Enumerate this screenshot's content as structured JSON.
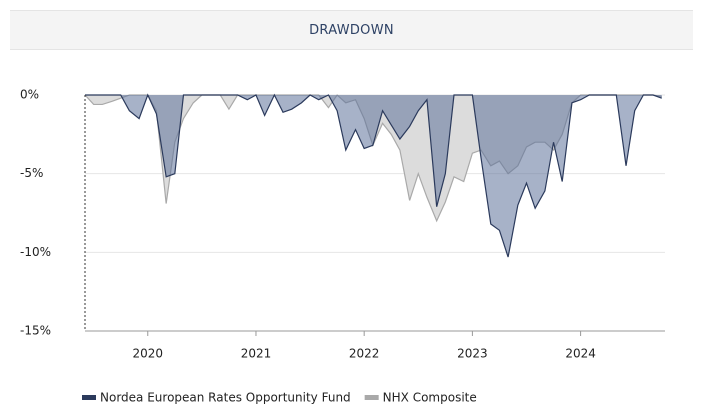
{
  "title": "DRAWDOWN",
  "chart_data": {
    "type": "area",
    "x": [
      2019.42,
      2019.5,
      2019.58,
      2019.67,
      2019.75,
      2019.83,
      2019.92,
      2020.0,
      2020.08,
      2020.17,
      2020.25,
      2020.33,
      2020.42,
      2020.5,
      2020.58,
      2020.67,
      2020.75,
      2020.83,
      2020.92,
      2021.0,
      2021.08,
      2021.17,
      2021.25,
      2021.33,
      2021.42,
      2021.5,
      2021.58,
      2021.67,
      2021.75,
      2021.83,
      2021.92,
      2022.0,
      2022.08,
      2022.17,
      2022.25,
      2022.33,
      2022.42,
      2022.5,
      2022.58,
      2022.67,
      2022.75,
      2022.83,
      2022.92,
      2023.0,
      2023.08,
      2023.17,
      2023.25,
      2023.33,
      2023.42,
      2023.5,
      2023.58,
      2023.67,
      2023.75,
      2023.83,
      2023.92,
      2024.0,
      2024.08,
      2024.17,
      2024.25,
      2024.33,
      2024.42,
      2024.5,
      2024.58,
      2024.67,
      2024.75
    ],
    "series": [
      {
        "name": "NHX Composite",
        "color": "#a9a9a9",
        "fill": "#dcdcdc",
        "values": [
          0,
          -0.6,
          -0.6,
          -0.4,
          -0.2,
          0,
          0,
          0,
          -1.0,
          -6.9,
          -3.0,
          -1.5,
          -0.5,
          0,
          0,
          0,
          -0.9,
          0,
          0,
          0,
          0,
          0,
          0,
          0,
          0,
          0,
          0,
          -0.8,
          0,
          -0.5,
          -0.3,
          -1.5,
          -3.2,
          -1.8,
          -2.5,
          -3.5,
          -6.7,
          -5.0,
          -6.5,
          -8.0,
          -6.8,
          -5.2,
          -5.5,
          -3.7,
          -3.5,
          -4.5,
          -4.2,
          -5.0,
          -4.5,
          -3.3,
          -3.0,
          -3.0,
          -3.5,
          -2.5,
          -0.5,
          0,
          0,
          0,
          0,
          0,
          0,
          0,
          0,
          0,
          -0.1
        ]
      },
      {
        "name": "Nordea European Rates Opportunity Fund",
        "color": "#2b3a5c",
        "fill": "#5f739a",
        "values": [
          0,
          0,
          0,
          0,
          0,
          -1.0,
          -1.5,
          0,
          -1.2,
          -5.2,
          -5.0,
          0,
          0,
          0,
          0,
          0,
          0,
          0,
          -0.3,
          0,
          -1.3,
          0,
          -1.1,
          -0.9,
          -0.5,
          0,
          -0.3,
          0,
          -1.0,
          -3.5,
          -2.2,
          -3.4,
          -3.2,
          -1.0,
          -1.9,
          -2.8,
          -2.0,
          -1.0,
          -0.3,
          -7.1,
          -5.0,
          0,
          0,
          0,
          -4.0,
          -8.2,
          -8.6,
          -10.3,
          -7.0,
          -5.6,
          -7.2,
          -6.1,
          -3.0,
          -5.5,
          -0.5,
          -0.3,
          0,
          0,
          0,
          0,
          -4.5,
          -1.0,
          0,
          0,
          -0.2
        ]
      }
    ],
    "xlim": [
      2019.42,
      2024.78
    ],
    "xticks": [
      2020,
      2021,
      2022,
      2023,
      2024
    ],
    "ylim": [
      -15,
      0
    ],
    "yticks": [
      {
        "value": 0,
        "label": "0%"
      },
      {
        "value": -5,
        "label": "-5%"
      },
      {
        "value": -10,
        "label": "-10%"
      },
      {
        "value": -15,
        "label": "-15%"
      }
    ],
    "grid": true,
    "legend": "bottom-left"
  }
}
